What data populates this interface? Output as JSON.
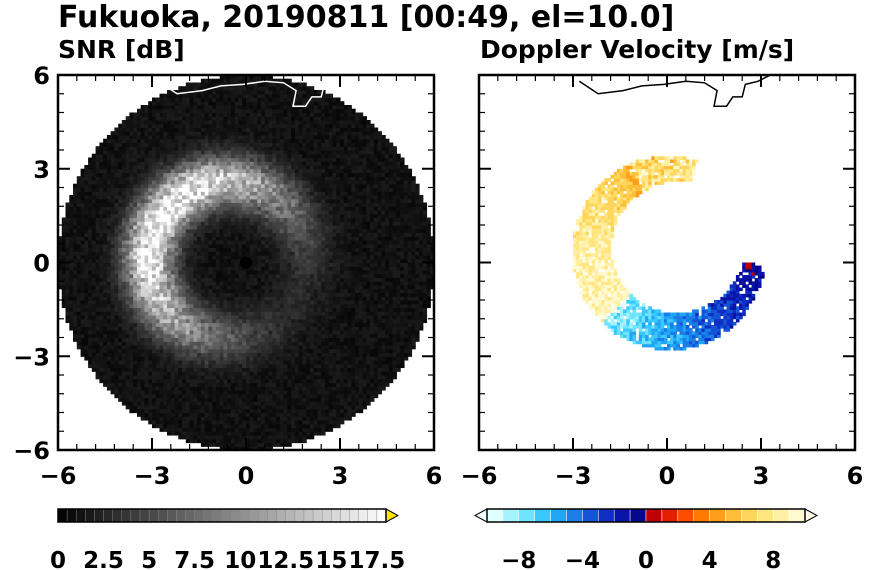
{
  "figure": {
    "title": "Fukuoka, 20190811 [00:49, el=10.0]"
  },
  "chart_data": [
    {
      "type": "heatmap",
      "title": "SNR [dB]",
      "xlim": [
        -6,
        6
      ],
      "ylim": [
        -6,
        6
      ],
      "xticks": [
        "−6",
        "−3",
        "0",
        "3",
        "6"
      ],
      "yticks": [
        "6",
        "3",
        "0",
        "−3",
        "−6"
      ],
      "radar_range": 6,
      "radar_center": [
        0,
        0
      ],
      "colorbar": {
        "range": [
          0,
          18
        ],
        "ticks": [
          "0",
          "2.5",
          "5",
          "7.5",
          "10",
          "12.5",
          "15",
          "17.5"
        ],
        "tick_values": [
          0,
          2.5,
          5,
          7.5,
          10,
          12.5,
          15,
          17.5
        ],
        "extend": "max",
        "bins": 36,
        "color_low": "#000000",
        "color_high": "#ffffff",
        "extend_color": "#ffe600"
      },
      "echo_ring": {
        "center": [
          -0.6,
          0.1
        ],
        "radius": 2.5,
        "thickness": 1.6,
        "peak_snr_db": 17
      },
      "background_snr_db": 0.5
    },
    {
      "type": "heatmap",
      "title": "Doppler Velocity [m/s]",
      "xlim": [
        -6,
        6
      ],
      "ylim": [
        -6,
        6
      ],
      "xticks": [
        "−6",
        "−3",
        "0",
        "3",
        "6"
      ],
      "yticks": [
        "6",
        "3",
        "0",
        "−3",
        "−6"
      ],
      "colorbar": {
        "range": [
          -10,
          10
        ],
        "ticks": [
          "−8",
          "−4",
          "0",
          "4",
          "8"
        ],
        "tick_values": [
          -8,
          -4,
          0,
          4,
          8
        ],
        "extend": "both",
        "colors": [
          "#e0ffff",
          "#a6f2ff",
          "#6ee4ff",
          "#3ac8ff",
          "#1fa6f5",
          "#1a7ee8",
          "#1554d6",
          "#0f2fc4",
          "#0a14a8",
          "#06078a",
          "#c00000",
          "#e61e00",
          "#ff4d00",
          "#ff7a00",
          "#ff9e1a",
          "#ffbe3a",
          "#ffd65c",
          "#ffe680",
          "#fff0a6",
          "#fff9d0"
        ]
      },
      "echo_arc": {
        "center": [
          0.2,
          0.4
        ],
        "radius": 2.6,
        "thickness": 1.3,
        "theta_deg": [
          75,
          350
        ],
        "approaching_max_ms": -8,
        "receding_max_ms": 9
      }
    }
  ],
  "coastline": [
    [
      -2.8,
      5.8
    ],
    [
      -2.2,
      5.4
    ],
    [
      -1.4,
      5.5
    ],
    [
      -0.8,
      5.65
    ],
    [
      -0.1,
      5.7
    ],
    [
      0.6,
      5.8
    ],
    [
      1.2,
      5.75
    ],
    [
      1.6,
      5.5
    ],
    [
      1.5,
      5.0
    ],
    [
      1.9,
      5.0
    ],
    [
      2.1,
      5.3
    ],
    [
      2.4,
      5.3
    ],
    [
      2.5,
      5.7
    ],
    [
      2.9,
      5.8
    ],
    [
      3.3,
      6.0
    ]
  ]
}
